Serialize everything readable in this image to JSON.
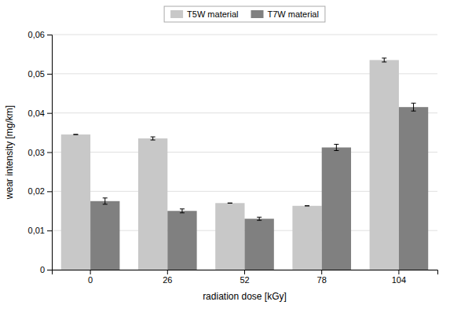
{
  "chart_data": {
    "type": "bar",
    "categories": [
      "0",
      "26",
      "52",
      "78",
      "104"
    ],
    "series": [
      {
        "name": "T5W material",
        "color": "#c8c8c8",
        "values": [
          0.0345,
          0.0335,
          0.017,
          0.0163,
          0.0535
        ],
        "errors": [
          0.0,
          0.0004,
          0.0,
          0.0,
          0.0005
        ]
      },
      {
        "name": "T7W material",
        "color": "#808080",
        "values": [
          0.0175,
          0.015,
          0.013,
          0.0312,
          0.0415
        ],
        "errors": [
          0.0008,
          0.0005,
          0.0004,
          0.0008,
          0.001
        ]
      }
    ],
    "xlabel": "radiation dose [kGy]",
    "ylabel": "wear intensity [mg/km]",
    "ylim": [
      0,
      0.06
    ],
    "yticks": [
      0,
      {
        "value": 0.01,
        "label": "0,01"
      },
      {
        "value": 0.02,
        "label": "0,02"
      },
      {
        "value": 0.03,
        "label": "0,03"
      },
      {
        "value": 0.04,
        "label": "0,04"
      },
      {
        "value": 0.05,
        "label": "0,05"
      },
      {
        "value": 0.06,
        "label": "0,06"
      }
    ],
    "grid": true,
    "legend": "top"
  }
}
